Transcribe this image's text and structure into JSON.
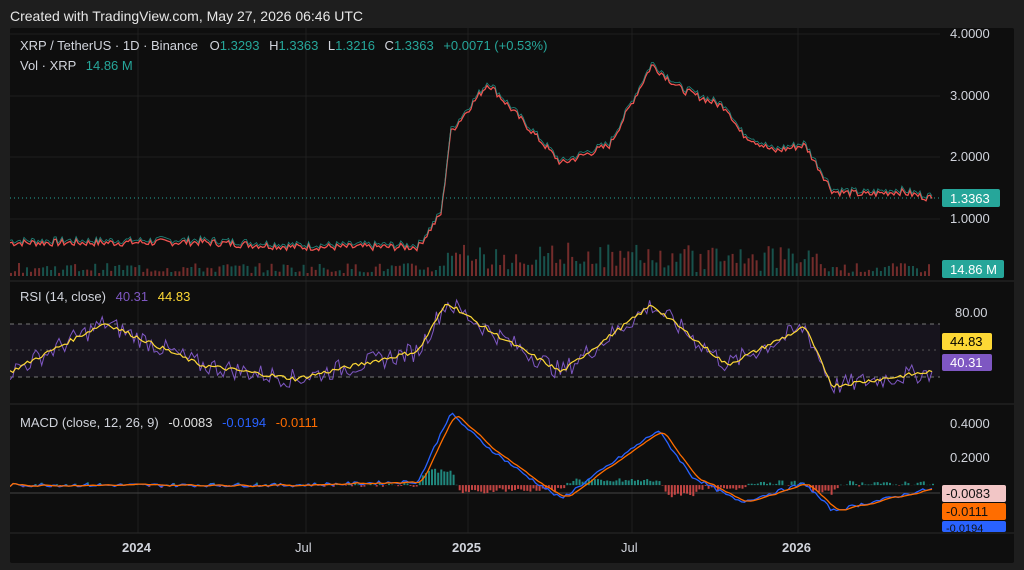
{
  "header": {
    "created_text": "Created with TradingView.com, May 27, 2026 06:46 UTC"
  },
  "legend": {
    "symbol": "XRP / TetherUS · 1D · Binance",
    "o_label": "O",
    "o_value": "1.3293",
    "h_label": "H",
    "h_value": "1.3363",
    "l_label": "L",
    "l_value": "1.3216",
    "c_label": "C",
    "c_value": "1.3363",
    "change": "+0.0071 (+0.53%)",
    "vol_label": "Vol · XRP",
    "vol_value": "14.86 M"
  },
  "price_axis": {
    "ticks": [
      "4.0000",
      "3.0000",
      "2.0000",
      "1.0000"
    ],
    "last_price": "1.3363",
    "volume_badge": "14.86 M"
  },
  "rsi": {
    "label": "RSI (14, close)",
    "value": "40.31",
    "ma_value": "44.83",
    "axis_tick": "80.00",
    "badge_ma": "44.83",
    "badge_rsi": "40.31"
  },
  "macd": {
    "label": "MACD (close, 12, 26, 9)",
    "hist_value": "-0.0083",
    "macd_value": "-0.0194",
    "signal_value": "-0.0111",
    "axis_ticks": [
      "0.4000",
      "0.2000"
    ],
    "badges": [
      "-0.0083",
      "-0.0111",
      "-0.0194"
    ]
  },
  "time_axis": [
    "2024",
    "Jul",
    "2025",
    "Jul",
    "2026"
  ],
  "colors": {
    "up": "#26a69a",
    "down": "#ef5350",
    "rsi_line": "#7e57c2",
    "rsi_ma": "#fdd835",
    "macd_line": "#2962ff",
    "signal_line": "#ff6d00",
    "grid": "#222222"
  },
  "chart_data": [
    {
      "type": "line",
      "title": "XRP / TetherUS · 1D · Binance",
      "x": [
        "2023-08-01",
        "2023-11-15",
        "2024-03-01",
        "2024-06-15",
        "2024-10-30",
        "2024-11-25",
        "2024-12-05",
        "2025-01-16",
        "2025-03-01",
        "2025-04-08",
        "2025-06-01",
        "2025-07-18",
        "2025-08-20",
        "2025-10-10",
        "2025-10-25",
        "2025-12-01",
        "2026-01-05",
        "2026-02-05",
        "2026-03-15",
        "2026-04-20",
        "2026-05-27"
      ],
      "series": [
        {
          "values": [
            0.62,
            0.62,
            0.63,
            0.55,
            0.55,
            1.1,
            2.4,
            3.2,
            2.5,
            1.9,
            2.2,
            3.5,
            3.1,
            2.8,
            2.4,
            2.1,
            2.2,
            1.45,
            1.4,
            1.45,
            1.3363
          ]
        }
      ],
      "ylim": [
        0,
        4.0
      ]
    },
    {
      "type": "line",
      "title": "RSI (14, close)",
      "x": [
        "2023-08-01",
        "2023-11-15",
        "2024-03-01",
        "2024-06-15",
        "2024-10-30",
        "2024-12-01",
        "2025-01-16",
        "2025-04-08",
        "2025-07-18",
        "2025-10-10",
        "2026-01-05",
        "2026-02-05",
        "2026-05-27"
      ],
      "series": [
        {
          "values": [
            40,
            75,
            45,
            35,
            55,
            90,
            70,
            40,
            88,
            45,
            72,
            30,
            40.31
          ]
        }
      ],
      "ylim": [
        20,
        100
      ]
    },
    {
      "type": "line",
      "title": "MACD (close, 12, 26, 9)",
      "x": [
        "2023-08-01",
        "2024-06-15",
        "2024-10-30",
        "2024-12-05",
        "2025-01-16",
        "2025-03-01",
        "2025-04-08",
        "2025-07-25",
        "2025-09-01",
        "2025-10-25",
        "2026-01-05",
        "2026-02-05",
        "2026-05-27"
      ],
      "series": [
        {
          "values": [
            0.0,
            0.0,
            0.02,
            0.42,
            0.22,
            0.05,
            -0.08,
            0.32,
            0.05,
            -0.1,
            0.01,
            -0.15,
            -0.0194
          ]
        }
      ],
      "ylim": [
        -0.25,
        0.45
      ]
    }
  ]
}
